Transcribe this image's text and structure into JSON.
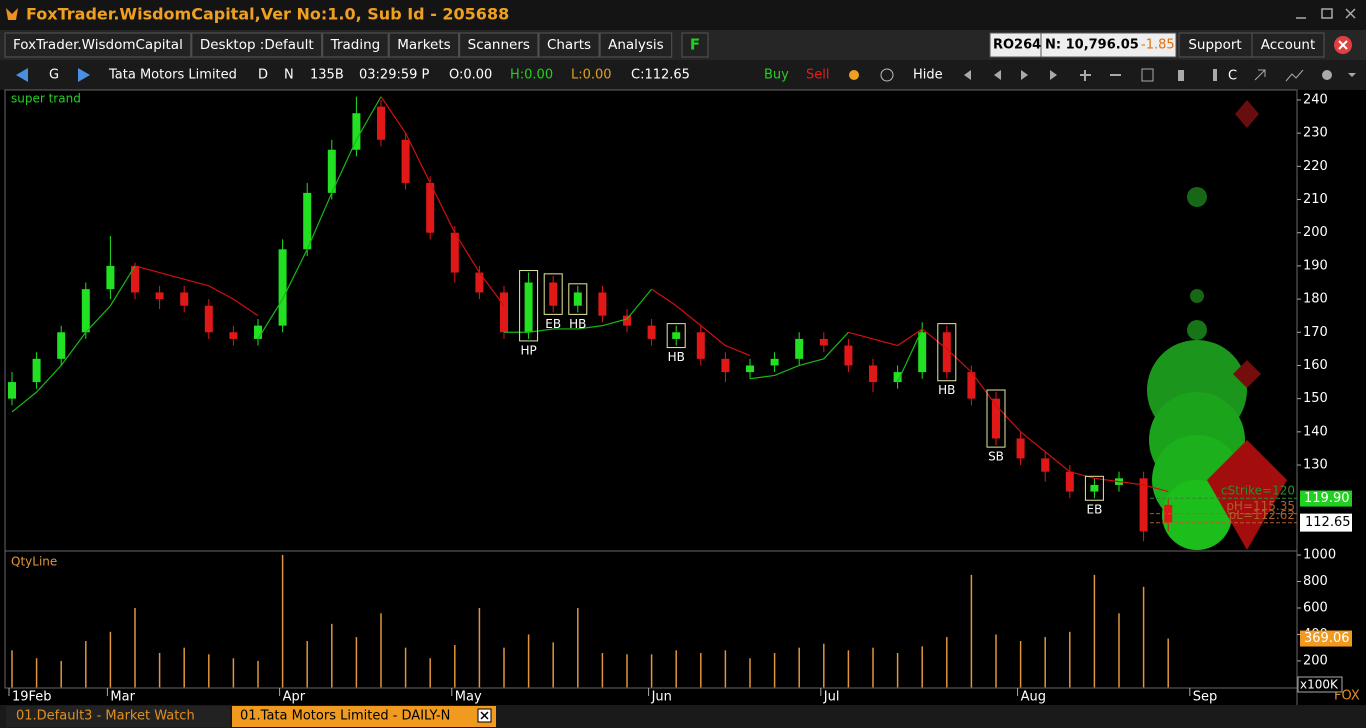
{
  "window": {
    "title": "FoxTrader.WisdomCapital,Ver No:1.0, Sub Id - 205688"
  },
  "menu": {
    "items": [
      "FoxTrader.WisdomCapital",
      "Desktop :Default",
      "Trading",
      "Markets",
      "Scanners",
      "Charts",
      "Analysis"
    ],
    "f": "F",
    "account_code": "RO264",
    "index": "N: 10,796.05",
    "change": "-1.85",
    "support": "Support",
    "account": "Account"
  },
  "toolbar": {
    "g": "G",
    "symbol": "Tata Motors Limited",
    "period": "D",
    "mode": "N",
    "bars": "135B",
    "time": "03:29:59 P",
    "open": "O:0.00",
    "high": "H:0.00",
    "low": "L:0.00",
    "close": "C:112.65",
    "buy": "Buy",
    "sell": "Sell",
    "hide": "Hide",
    "c": "C"
  },
  "tabs": [
    "01.Default3 - Market Watch",
    "01.Tata Motors Limited -  DAILY-N"
  ],
  "brand": "FOX",
  "chart_data": [
    {
      "type": "candlestick",
      "title": "super trand",
      "categories": [
        "19Feb",
        null,
        null,
        null,
        "Mar",
        null,
        null,
        null,
        null,
        null,
        null,
        "Apr",
        null,
        null,
        null,
        null,
        null,
        null,
        "May",
        null,
        null,
        null,
        null,
        null,
        null,
        null,
        "Jun",
        null,
        null,
        null,
        null,
        null,
        null,
        "Jul",
        null,
        null,
        null,
        null,
        null,
        null,
        null,
        "Aug",
        null,
        null,
        null,
        null,
        null,
        null,
        "Sep"
      ],
      "open": [
        150,
        155,
        162,
        170,
        183,
        190,
        182,
        182,
        178,
        170,
        168,
        172,
        195,
        212,
        225,
        238,
        228,
        215,
        200,
        188,
        182,
        170,
        185,
        178,
        182,
        175,
        172,
        168,
        170,
        162,
        158,
        160,
        162,
        168,
        166,
        160,
        155,
        158,
        170,
        158,
        150,
        138,
        132,
        128,
        122,
        124,
        126,
        118,
        null
      ],
      "high": [
        158,
        164,
        172,
        185,
        199,
        191,
        184,
        184,
        180,
        172,
        174,
        198,
        215,
        228,
        241,
        240,
        230,
        217,
        202,
        190,
        184,
        188,
        187,
        184,
        184,
        177,
        174,
        172,
        172,
        164,
        162,
        164,
        170,
        170,
        168,
        162,
        160,
        173,
        172,
        160,
        152,
        140,
        134,
        130,
        126,
        128,
        128,
        120,
        null
      ],
      "low": [
        148,
        153,
        160,
        168,
        180,
        180,
        177,
        176,
        168,
        166,
        166,
        170,
        193,
        210,
        223,
        226,
        213,
        198,
        185,
        180,
        168,
        168,
        176,
        176,
        173,
        170,
        166,
        166,
        160,
        155,
        156,
        158,
        160,
        164,
        158,
        152,
        153,
        156,
        156,
        148,
        136,
        130,
        125,
        120,
        120,
        122,
        107,
        110,
        null
      ],
      "close": [
        155,
        162,
        170,
        183,
        190,
        182,
        180,
        178,
        170,
        168,
        172,
        195,
        212,
        225,
        236,
        228,
        215,
        200,
        188,
        182,
        170,
        185,
        178,
        182,
        175,
        172,
        168,
        170,
        162,
        158,
        160,
        162,
        168,
        166,
        160,
        155,
        158,
        170,
        158,
        150,
        138,
        132,
        128,
        122,
        124,
        126,
        110,
        112.65,
        null
      ],
      "up_color": "#22e022",
      "down_color": "#e01818",
      "supertrend": [
        {
          "color": "#18b818",
          "values": [
            146,
            152,
            160,
            170,
            178,
            190,
            null,
            null,
            null,
            null,
            168,
            180,
            195,
            212,
            228,
            241,
            null,
            null,
            null,
            null,
            170,
            170,
            171,
            171,
            172,
            174,
            183,
            null,
            null,
            null,
            156,
            157,
            160,
            162,
            170,
            null,
            155,
            171,
            null,
            null,
            null,
            null,
            null,
            null,
            null,
            null,
            null,
            null,
            null
          ]
        },
        {
          "color": "#d01010",
          "values": [
            null,
            null,
            null,
            null,
            null,
            190,
            188,
            186,
            184,
            180,
            175,
            null,
            null,
            null,
            null,
            241,
            230,
            215,
            200,
            188,
            178,
            null,
            null,
            null,
            null,
            null,
            183,
            178,
            172,
            166,
            163,
            null,
            null,
            null,
            170,
            168,
            166,
            171,
            165,
            158,
            148,
            140,
            134,
            128,
            126,
            125,
            124,
            122,
            null
          ]
        }
      ],
      "annotations": [
        {
          "text": "HP",
          "index": 21
        },
        {
          "text": "EB",
          "index": 22
        },
        {
          "text": "HB",
          "index": 23
        },
        {
          "text": "HB",
          "index": 27
        },
        {
          "text": "HB",
          "index": 38
        },
        {
          "text": "SB",
          "index": 40
        },
        {
          "text": "EB",
          "index": 44
        }
      ],
      "levels": [
        {
          "value": 120,
          "label": "cStrike=120",
          "color": "#2e8b2e"
        },
        {
          "value": 115.35,
          "label": "pH=115.35",
          "color": "#b0602a"
        },
        {
          "value": 112.62,
          "label": "pL=112.62",
          "color": "#b0602a"
        }
      ],
      "marker": {
        "value": 119.9,
        "label": "119.90"
      },
      "ylim": [
        104.4,
        243
      ],
      "yticks": [
        130,
        140,
        150,
        160,
        170,
        180,
        190,
        200,
        210,
        220,
        230,
        240
      ]
    },
    {
      "type": "bar",
      "title": "QtyLine",
      "color": "#e0963c",
      "values": [
        280,
        220,
        200,
        350,
        420,
        600,
        260,
        300,
        250,
        220,
        200,
        1000,
        350,
        480,
        380,
        560,
        300,
        220,
        320,
        600,
        300,
        400,
        340,
        600,
        260,
        250,
        250,
        280,
        260,
        280,
        220,
        260,
        300,
        330,
        280,
        300,
        260,
        310,
        380,
        850,
        400,
        350,
        380,
        420,
        850,
        560,
        760,
        369.06,
        null
      ],
      "ylim": [
        -19.8,
        1023
      ],
      "yticks": [
        200,
        400,
        600,
        800,
        1000
      ],
      "unit": "x100K"
    }
  ]
}
